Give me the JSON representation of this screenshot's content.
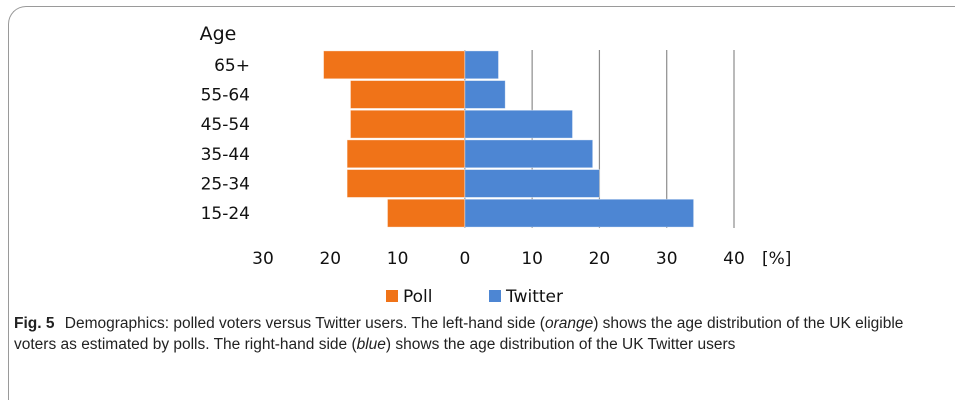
{
  "chart_data": {
    "type": "bar",
    "orientation": "horizontal-diverging",
    "ylabel": "Age",
    "xunit": "[%]",
    "categories": [
      "65+",
      "55-64",
      "45-54",
      "35-44",
      "25-34",
      "15-24"
    ],
    "series": [
      {
        "name": "Poll",
        "side": "left",
        "color": "#f07318",
        "values": [
          21,
          17,
          17,
          17.5,
          17.5,
          11.5
        ]
      },
      {
        "name": "Twitter",
        "side": "right",
        "color": "#4d86d3",
        "values": [
          5,
          6,
          16,
          19,
          20,
          34
        ]
      }
    ],
    "xlim": [
      -30,
      40
    ],
    "xticks": [
      -30,
      -20,
      -10,
      0,
      10,
      20,
      30,
      40
    ],
    "xtick_labels": [
      "30",
      "20",
      "10",
      "0",
      "10",
      "20",
      "30",
      "40"
    ],
    "grid": true,
    "legend": "bottom"
  },
  "caption": {
    "label": "Fig. 5",
    "part1": "Demographics: polled voters versus Twitter users. The left-hand side (",
    "orange": "orange",
    "part2": ") shows the age distribution of the UK eligible voters as estimated by polls. The right-hand side (",
    "blue": "blue",
    "part3": ") shows the age distribution of the UK Twitter users"
  }
}
